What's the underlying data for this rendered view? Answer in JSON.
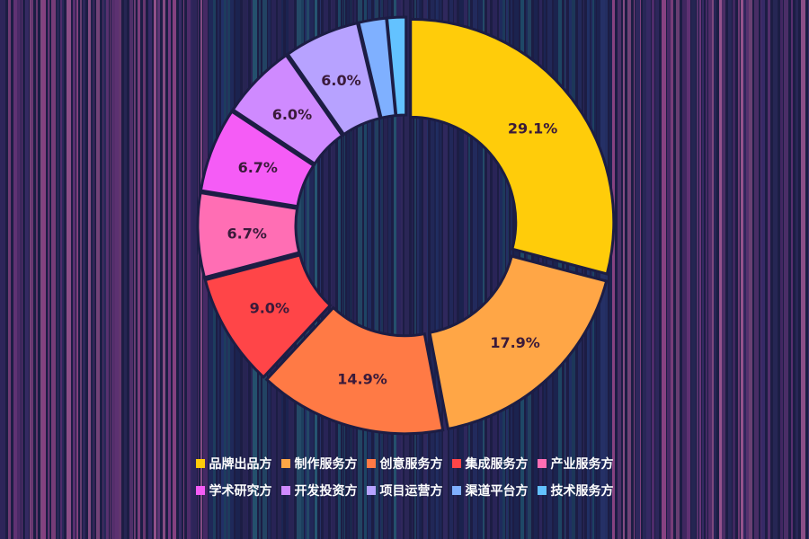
{
  "chart_data": {
    "type": "pie",
    "categories": [
      "品牌出品方",
      "制作服务方",
      "创意服务方",
      "集成服务方",
      "产业服务方",
      "学术研究方",
      "开发投资方",
      "项目运营方",
      "渠道平台方",
      "技术服务方"
    ],
    "values": [
      29.1,
      17.9,
      14.9,
      9.0,
      6.7,
      6.7,
      6.0,
      6.0,
      2.2,
      1.5
    ],
    "data_labels": [
      "29.1%",
      "17.9%",
      "14.9%",
      "9.0%",
      "6.7%",
      "6.7%",
      "6.0%",
      "6.0%",
      "",
      ""
    ],
    "colors": [
      "#ffcc0a",
      "#ffa646",
      "#ff7a45",
      "#ff4548",
      "#ff6eb4",
      "#f55cf6",
      "#cf8aff",
      "#b7a2ff",
      "#7fb0ff",
      "#63c2ff"
    ],
    "donut": true,
    "legend_position": "bottom"
  }
}
